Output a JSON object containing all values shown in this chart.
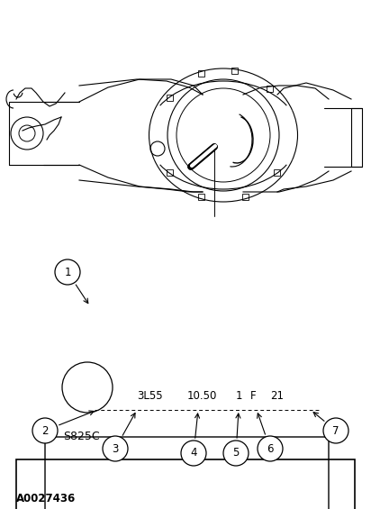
{
  "bg_color": "#ffffff",
  "line_color": "#000000",
  "fig_width": 4.12,
  "fig_height": 5.65,
  "dpi": 100,
  "watermark": "A0027436",
  "label_text": "S825C",
  "code_items": [
    "3L55",
    "10.50",
    "1",
    "F",
    "21"
  ],
  "callout_labels": [
    "1",
    "2",
    "3",
    "4",
    "5",
    "6",
    "7"
  ]
}
